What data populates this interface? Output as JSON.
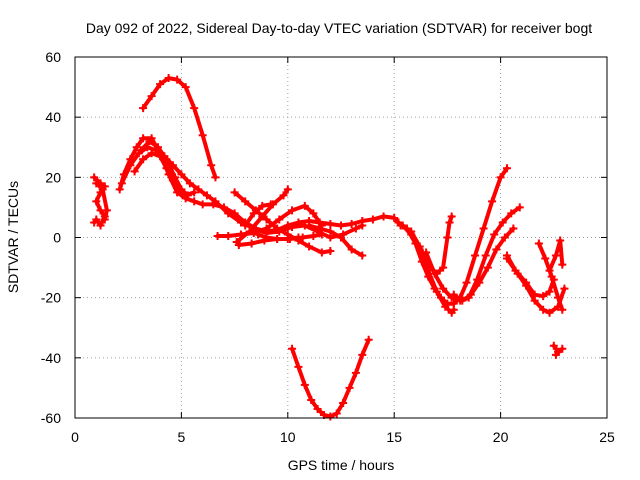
{
  "chart_data": {
    "type": "scatter",
    "title": "Day 092 of 2022, Sidereal Day-to-day VTEC variation (SDTVAR) for receiver bogt",
    "xlabel": "GPS time / hours",
    "ylabel": "SDTVAR / TECUs",
    "xlim": [
      0,
      25
    ],
    "ylim": [
      -60,
      60
    ],
    "xticks": [
      0,
      5,
      10,
      15,
      20,
      25
    ],
    "yticks": [
      -60,
      -40,
      -20,
      0,
      20,
      40,
      60
    ],
    "xtick_labels": [
      "0",
      "5",
      "10",
      "15",
      "20",
      "25"
    ],
    "ytick_labels": [
      "-60",
      "-40",
      "-20",
      "0",
      "20",
      "40",
      "60"
    ],
    "grid": true,
    "color": "#ff0000",
    "series": [
      {
        "name": "s1",
        "points": [
          [
            0.9,
            20
          ],
          [
            1.2,
            18
          ],
          [
            1.4,
            17
          ],
          [
            1.2,
            15
          ],
          [
            1.0,
            12
          ],
          [
            1.2,
            9
          ],
          [
            1.4,
            7
          ],
          [
            1.2,
            4
          ],
          [
            1.0,
            6
          ],
          [
            0.9,
            5
          ]
        ]
      },
      {
        "name": "s2",
        "points": [
          [
            1.0,
            18
          ],
          [
            1.3,
            16
          ],
          [
            1.5,
            9
          ],
          [
            1.4,
            6
          ]
        ]
      },
      {
        "name": "s3",
        "points": [
          [
            2.1,
            16
          ],
          [
            2.3,
            21
          ],
          [
            2.6,
            26
          ],
          [
            2.9,
            30
          ],
          [
            3.2,
            33
          ],
          [
            3.6,
            33
          ],
          [
            4.0,
            28
          ],
          [
            4.4,
            21
          ],
          [
            4.8,
            15
          ],
          [
            5.2,
            13
          ],
          [
            5.6,
            12
          ],
          [
            6.0,
            11
          ],
          [
            6.5,
            11
          ],
          [
            7.0,
            10
          ],
          [
            7.5,
            8
          ],
          [
            8.0,
            5
          ],
          [
            8.5,
            3
          ],
          [
            9.0,
            2
          ],
          [
            9.5,
            2.5
          ],
          [
            10.0,
            4
          ],
          [
            10.5,
            5
          ],
          [
            11.0,
            5.5
          ],
          [
            11.5,
            5
          ],
          [
            12.0,
            4.5
          ],
          [
            12.5,
            4
          ],
          [
            13.0,
            4.5
          ],
          [
            13.5,
            5.5
          ],
          [
            14.0,
            6
          ],
          [
            14.5,
            7
          ],
          [
            15.0,
            6.5
          ],
          [
            15.3,
            4
          ]
        ]
      },
      {
        "name": "s4",
        "points": [
          [
            2.2,
            18
          ],
          [
            2.6,
            24
          ],
          [
            3.0,
            28
          ],
          [
            3.4,
            30
          ],
          [
            3.8,
            29
          ],
          [
            4.2,
            27
          ],
          [
            4.6,
            24
          ],
          [
            5.0,
            21
          ],
          [
            5.4,
            18
          ],
          [
            5.8,
            16
          ],
          [
            6.2,
            14
          ],
          [
            6.6,
            12
          ],
          [
            7.2,
            8
          ],
          [
            7.8,
            5
          ],
          [
            8.4,
            3
          ],
          [
            9.0,
            1.5
          ],
          [
            9.6,
            2
          ],
          [
            10.2,
            3.5
          ],
          [
            10.8,
            4
          ],
          [
            11.4,
            2
          ],
          [
            12.0,
            0
          ],
          [
            12.6,
            1
          ],
          [
            13.2,
            3
          ],
          [
            13.5,
            4
          ]
        ]
      },
      {
        "name": "s5",
        "points": [
          [
            2.8,
            22
          ],
          [
            3.2,
            26
          ],
          [
            3.6,
            28
          ],
          [
            4.0,
            27
          ],
          [
            4.3,
            23
          ],
          [
            4.6,
            19
          ],
          [
            4.9,
            16
          ],
          [
            5.2,
            14
          ],
          [
            5.6,
            15
          ]
        ]
      },
      {
        "name": "s6",
        "points": [
          [
            3.1,
            29
          ],
          [
            3.5,
            32
          ],
          [
            3.9,
            30
          ],
          [
            4.3,
            26
          ],
          [
            4.7,
            20
          ],
          [
            5.0,
            16
          ],
          [
            5.3,
            14
          ]
        ]
      },
      {
        "name": "s7",
        "points": [
          [
            3.2,
            43
          ],
          [
            3.6,
            47
          ],
          [
            4.0,
            51
          ],
          [
            4.4,
            53
          ],
          [
            4.8,
            52.5
          ],
          [
            5.2,
            50
          ],
          [
            5.6,
            43
          ],
          [
            6.0,
            34
          ],
          [
            6.4,
            24
          ],
          [
            6.6,
            20
          ]
        ]
      },
      {
        "name": "s8",
        "points": [
          [
            6.7,
            0.5
          ],
          [
            7.2,
            0.5
          ],
          [
            7.8,
            1
          ],
          [
            8.4,
            1.5
          ],
          [
            9.0,
            3
          ],
          [
            9.6,
            6
          ],
          [
            10.2,
            9
          ],
          [
            10.8,
            10.5
          ],
          [
            11.2,
            8
          ],
          [
            11.6,
            4
          ]
        ]
      },
      {
        "name": "s9",
        "points": [
          [
            7.5,
            15
          ],
          [
            8.0,
            12
          ],
          [
            8.5,
            9
          ],
          [
            9.0,
            6
          ],
          [
            9.5,
            3
          ],
          [
            10.0,
            1
          ],
          [
            10.5,
            -1
          ],
          [
            11.0,
            -3
          ],
          [
            11.6,
            -5
          ],
          [
            12.0,
            -4.5
          ]
        ]
      },
      {
        "name": "s10",
        "points": [
          [
            7.7,
            -2.5
          ],
          [
            8.3,
            -2
          ],
          [
            8.9,
            -1
          ],
          [
            9.5,
            -0.5
          ],
          [
            10.1,
            -0.5
          ],
          [
            10.7,
            0
          ],
          [
            11.2,
            0.5
          ],
          [
            11.6,
            1
          ]
        ]
      },
      {
        "name": "s11",
        "points": [
          [
            7.6,
            -1.5
          ],
          [
            8.2,
            2
          ],
          [
            8.8,
            7
          ],
          [
            9.3,
            11
          ],
          [
            9.8,
            14
          ],
          [
            10.0,
            16
          ]
        ]
      },
      {
        "name": "s12",
        "points": [
          [
            8.0,
            4
          ],
          [
            8.4,
            8
          ],
          [
            8.8,
            10.5
          ],
          [
            9.2,
            11
          ]
        ]
      },
      {
        "name": "s13",
        "points": [
          [
            8.6,
            1
          ],
          [
            9.0,
            0
          ],
          [
            9.5,
            -0.5
          ],
          [
            10.0,
            -0.5
          ],
          [
            10.5,
            0
          ]
        ]
      },
      {
        "name": "s14",
        "points": [
          [
            10.2,
            -37
          ],
          [
            10.5,
            -43
          ],
          [
            10.8,
            -49
          ],
          [
            11.1,
            -54
          ],
          [
            11.4,
            -57
          ],
          [
            11.7,
            -59
          ],
          [
            12.0,
            -59.5
          ],
          [
            12.3,
            -58.5
          ],
          [
            12.6,
            -55
          ],
          [
            12.9,
            -50
          ],
          [
            13.2,
            -45
          ],
          [
            13.5,
            -39
          ],
          [
            13.8,
            -34
          ]
        ]
      },
      {
        "name": "s15",
        "points": [
          [
            11.0,
            4
          ],
          [
            11.5,
            3
          ],
          [
            12.0,
            2
          ],
          [
            12.5,
            0
          ],
          [
            13.0,
            -4
          ],
          [
            13.5,
            -6
          ]
        ]
      },
      {
        "name": "s16",
        "points": [
          [
            15.2,
            5
          ],
          [
            15.6,
            3
          ],
          [
            16.0,
            -2
          ],
          [
            16.3,
            -8
          ],
          [
            16.6,
            -13
          ],
          [
            16.9,
            -17
          ],
          [
            17.2,
            -20
          ],
          [
            17.5,
            -22
          ],
          [
            17.8,
            -22
          ],
          [
            18.1,
            -20
          ],
          [
            18.4,
            -15
          ],
          [
            18.8,
            -6
          ],
          [
            19.2,
            3
          ],
          [
            19.6,
            12
          ],
          [
            20.0,
            20
          ],
          [
            20.3,
            23
          ]
        ]
      },
      {
        "name": "s17",
        "points": [
          [
            15.4,
            4
          ],
          [
            15.8,
            1
          ],
          [
            16.2,
            -4
          ],
          [
            16.6,
            -11
          ],
          [
            17.0,
            -18
          ],
          [
            17.4,
            -23
          ],
          [
            17.7,
            -25
          ],
          [
            17.8,
            -24
          ]
        ]
      },
      {
        "name": "s18",
        "points": [
          [
            15.8,
            2
          ],
          [
            16.2,
            -3
          ],
          [
            16.6,
            -9
          ],
          [
            17.0,
            -12
          ],
          [
            17.3,
            -10
          ],
          [
            17.5,
            0
          ],
          [
            17.6,
            5
          ],
          [
            17.7,
            7
          ]
        ]
      },
      {
        "name": "s19",
        "points": [
          [
            16.5,
            -5
          ],
          [
            16.9,
            -12
          ],
          [
            17.3,
            -17
          ],
          [
            17.7,
            -20
          ],
          [
            18.1,
            -21
          ],
          [
            18.5,
            -20
          ],
          [
            18.9,
            -14
          ],
          [
            19.3,
            -6
          ],
          [
            19.7,
            1
          ],
          [
            20.1,
            5
          ],
          [
            20.5,
            8
          ],
          [
            20.9,
            10
          ]
        ]
      },
      {
        "name": "s20",
        "points": [
          [
            17.8,
            -19
          ],
          [
            18.2,
            -21
          ],
          [
            18.6,
            -19
          ],
          [
            19.0,
            -15
          ],
          [
            19.4,
            -10
          ],
          [
            19.8,
            -4
          ],
          [
            20.2,
            0
          ],
          [
            20.6,
            3
          ]
        ]
      },
      {
        "name": "s21",
        "points": [
          [
            20.3,
            -6
          ],
          [
            20.7,
            -11
          ],
          [
            21.2,
            -15
          ],
          [
            21.6,
            -19
          ],
          [
            22.0,
            -19.5
          ],
          [
            22.3,
            -18
          ],
          [
            22.5,
            -14
          ]
        ]
      },
      {
        "name": "s22",
        "points": [
          [
            20.3,
            -7
          ],
          [
            20.8,
            -12
          ],
          [
            21.2,
            -16
          ],
          [
            21.6,
            -21
          ],
          [
            22.0,
            -24
          ],
          [
            22.3,
            -25
          ],
          [
            22.7,
            -23
          ],
          [
            23.0,
            -17
          ]
        ]
      },
      {
        "name": "s23",
        "points": [
          [
            21.8,
            -2
          ],
          [
            22.1,
            -7
          ],
          [
            22.4,
            -13
          ],
          [
            22.7,
            -20
          ],
          [
            22.9,
            -24
          ]
        ]
      },
      {
        "name": "s24",
        "points": [
          [
            22.3,
            -11
          ],
          [
            22.6,
            -6
          ],
          [
            22.8,
            -1
          ],
          [
            22.9,
            -9
          ]
        ]
      },
      {
        "name": "s25",
        "points": [
          [
            22.5,
            -36
          ],
          [
            22.7,
            -38
          ],
          [
            22.9,
            -37
          ],
          [
            22.6,
            -39
          ]
        ]
      }
    ]
  }
}
